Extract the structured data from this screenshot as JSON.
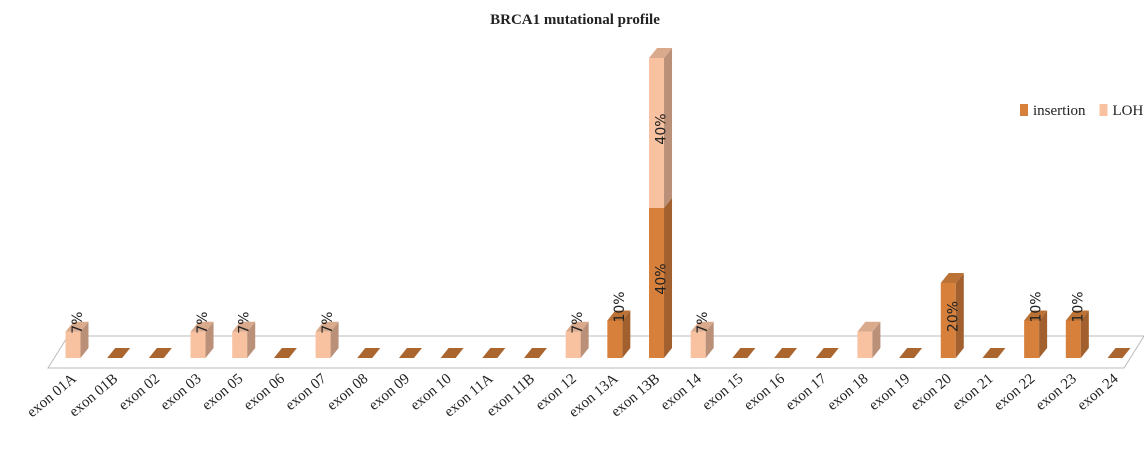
{
  "chart_data": {
    "type": "bar3d_stacked",
    "title": "BRCA1 mutational profile",
    "categories": [
      "exon 01A",
      "exon 01B",
      "exon 02",
      "exon 03",
      "exon 05",
      "exon 06",
      "exon 07",
      "exon 08",
      "exon 09",
      "exon 10",
      "exon 11A",
      "exon 11B",
      "exon 12",
      "exon 13A",
      "exon 13B",
      "exon 14",
      "exon 15",
      "exon 16",
      "exon 17",
      "exon 18",
      "exon 19",
      "exon 20",
      "exon 21",
      "exon 22",
      "exon 23",
      "exon 24"
    ],
    "series": [
      {
        "name": "insertion",
        "color": "#d6803c",
        "values": [
          0,
          0,
          0,
          0,
          0,
          0,
          0,
          0,
          0,
          0,
          0,
          0,
          0,
          10,
          40,
          0,
          0,
          0,
          0,
          0,
          0,
          20,
          0,
          10,
          10,
          0
        ],
        "value_labels": [
          null,
          null,
          null,
          null,
          null,
          null,
          null,
          null,
          null,
          null,
          null,
          null,
          null,
          "10%",
          "40%",
          null,
          null,
          null,
          null,
          null,
          null,
          "20%",
          null,
          "10%",
          "10%",
          null
        ]
      },
      {
        "name": "LOH",
        "color": "#f8c1a0",
        "values": [
          7,
          0,
          0,
          7,
          7,
          0,
          7,
          0,
          0,
          0,
          0,
          0,
          7,
          0,
          40,
          7,
          0,
          0,
          0,
          7,
          0,
          0,
          0,
          0,
          0,
          0
        ],
        "value_labels": [
          "7%",
          null,
          null,
          "7%",
          "7%",
          null,
          "7%",
          null,
          null,
          null,
          null,
          null,
          "7%",
          null,
          "40%",
          "7%",
          null,
          null,
          null,
          null,
          null,
          null,
          null,
          null,
          null,
          null
        ]
      }
    ],
    "legend": "top-right"
  }
}
